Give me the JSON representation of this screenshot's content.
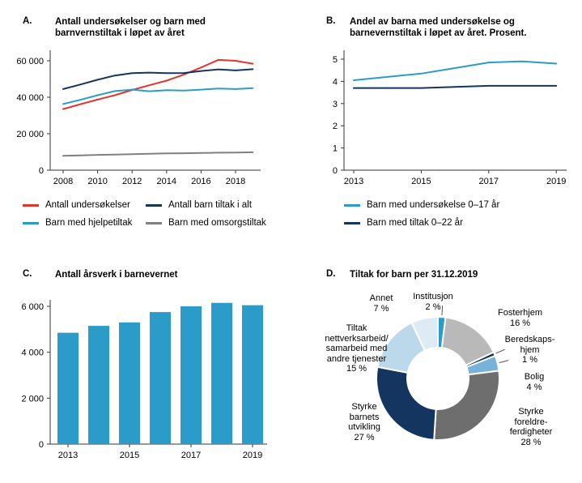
{
  "figure": {
    "background": "#ffffff"
  },
  "panels": {
    "a": {
      "letter": "A.",
      "title": "Antall undersøkelser og barn med\nbarnvernstiltak i løpet av året",
      "legend": [
        {
          "label": "Antall undersøkelser",
          "color": "#e2362b"
        },
        {
          "label": "Antall barn tiltak i alt",
          "color": "#14355f"
        },
        {
          "label": "Barn med hjelpetiltak",
          "color": "#2b9cc9"
        },
        {
          "label": "Barn med omsorgstiltak",
          "color": "#808080"
        }
      ]
    },
    "b": {
      "letter": "B.",
      "title": "Andel av barna med undersøkelse og\nbarnevernstiltak i løpet av året. Prosent.",
      "legend": [
        {
          "label": "Barn med undersøkelse 0–17 år",
          "color": "#2b9cc9"
        },
        {
          "label": "Barn med tiltak 0–22 år",
          "color": "#14355f"
        }
      ]
    },
    "c": {
      "letter": "C.",
      "title": "Antall årsverk i barnevernet"
    },
    "d": {
      "letter": "D.",
      "title": "Tiltak for barn per 31.12.2019",
      "callouts": [
        {
          "text": "Institusjon\n2 %"
        },
        {
          "text": "Fosterhjem\n16 %"
        },
        {
          "text": "Beredskaps-\nhjem\n1 %"
        },
        {
          "text": "Bolig\n4 %"
        },
        {
          "text": "Styrke\nforeldre-\nferdigheter\n28 %"
        },
        {
          "text": "Styrke\nbarnets\nutvikling\n27 %"
        },
        {
          "text": "Tiltak\nnettverksarbeid/\nsamarbeid med\nandre tjenester\n15 %"
        },
        {
          "text": "Annet\n7 %"
        }
      ]
    }
  },
  "chart_data": [
    {
      "id": "a",
      "type": "line",
      "title": "Antall undersøkelser og barn med barnvernstiltak i løpet av året",
      "x": [
        2008,
        2009,
        2010,
        2011,
        2012,
        2013,
        2014,
        2015,
        2016,
        2017,
        2018,
        2019
      ],
      "series": [
        {
          "name": "Antall undersøkelser",
          "color": "#e2362b",
          "values": [
            33500,
            36200,
            38700,
            41100,
            44000,
            46600,
            49100,
            52400,
            56300,
            60500,
            60000,
            58400
          ]
        },
        {
          "name": "Antall barn tiltak i alt",
          "color": "#14355f",
          "values": [
            44500,
            47000,
            49600,
            51900,
            53200,
            53500,
            53200,
            53300,
            54400,
            55300,
            54700,
            55400
          ]
        },
        {
          "name": "Barn med hjelpetiltak",
          "color": "#2b9cc9",
          "values": [
            36300,
            38600,
            41100,
            43400,
            44200,
            43300,
            43900,
            43700,
            44200,
            44800,
            44500,
            45000
          ]
        },
        {
          "name": "Barn med omsorgstiltak",
          "color": "#808080",
          "values": [
            7900,
            8100,
            8400,
            8600,
            8800,
            9000,
            9200,
            9300,
            9400,
            9600,
            9700,
            9800
          ]
        }
      ],
      "ylim": [
        0,
        64000
      ],
      "y_tick_values": [
        0,
        20000,
        40000,
        60000
      ],
      "y_tick_labels": [
        "0",
        "20 000",
        "40 000",
        "60 000"
      ],
      "x_tick_values": [
        2008,
        2010,
        2012,
        2014,
        2016,
        2018
      ],
      "x_tick_labels": [
        "2008",
        "2010",
        "2012",
        "2014",
        "2016",
        "2018"
      ],
      "grid": false,
      "legend_position": "bottom"
    },
    {
      "id": "b",
      "type": "line",
      "title": "Andel av barna med undersøkelse og barnevernstiltak i løpet av året. Prosent.",
      "x": [
        2013,
        2014,
        2015,
        2016,
        2017,
        2018,
        2019
      ],
      "series": [
        {
          "name": "Barn med undersøkelse 0–17 år",
          "color": "#2b9cc9",
          "values": [
            4.05,
            4.2,
            4.35,
            4.6,
            4.85,
            4.9,
            4.8
          ]
        },
        {
          "name": "Barn med tiltak 0–22 år",
          "color": "#14355f",
          "values": [
            3.7,
            3.7,
            3.7,
            3.75,
            3.8,
            3.8,
            3.8
          ]
        }
      ],
      "ylim": [
        0,
        5.4
      ],
      "y_tick_values": [
        0,
        1,
        2,
        3,
        4,
        5
      ],
      "y_tick_labels": [
        "0",
        "1",
        "2",
        "3",
        "4",
        "5"
      ],
      "x_tick_values": [
        2013,
        2015,
        2017,
        2019
      ],
      "x_tick_labels": [
        "2013",
        "2015",
        "2017",
        "2019"
      ],
      "grid": false,
      "legend_position": "bottom"
    },
    {
      "id": "c",
      "type": "bar",
      "title": "Antall årsverk i barnevernet",
      "categories": [
        2013,
        2014,
        2015,
        2016,
        2017,
        2018,
        2019
      ],
      "values": [
        4850,
        5150,
        5300,
        5750,
        6000,
        6150,
        6050
      ],
      "color": "#2b9cc9",
      "ylim": [
        0,
        6300
      ],
      "y_tick_values": [
        0,
        2000,
        4000,
        6000
      ],
      "y_tick_labels": [
        "0",
        "2 000",
        "4 000",
        "6 000"
      ],
      "x_tick_values": [
        2013,
        2015,
        2017,
        2019
      ],
      "x_tick_labels": [
        "2013",
        "2015",
        "2017",
        "2019"
      ],
      "grid": false
    },
    {
      "id": "d",
      "type": "pie",
      "title": "Tiltak for barn per 31.12.2019",
      "segments": [
        {
          "label": "Institusjon",
          "pct": 2,
          "color": "#2b9cc9"
        },
        {
          "label": "Fosterhjem",
          "pct": 16,
          "color": "#b9b9b9"
        },
        {
          "label": "Beredskapshjem",
          "pct": 1,
          "color": "#14355f"
        },
        {
          "label": "Bolig",
          "pct": 4,
          "color": "#77b3d8"
        },
        {
          "label": "Styrke foreldreferdigheter",
          "pct": 28,
          "color": "#6e6e6e"
        },
        {
          "label": "Styrke barnets utvikling",
          "pct": 27,
          "color": "#14355f"
        },
        {
          "label": "Tiltak nettverksarbeid/samarbeid med andre tjenester",
          "pct": 15,
          "color": "#bcd9ec"
        },
        {
          "label": "Annet",
          "pct": 7,
          "color": "#ddebf5"
        }
      ],
      "donut": true
    }
  ]
}
